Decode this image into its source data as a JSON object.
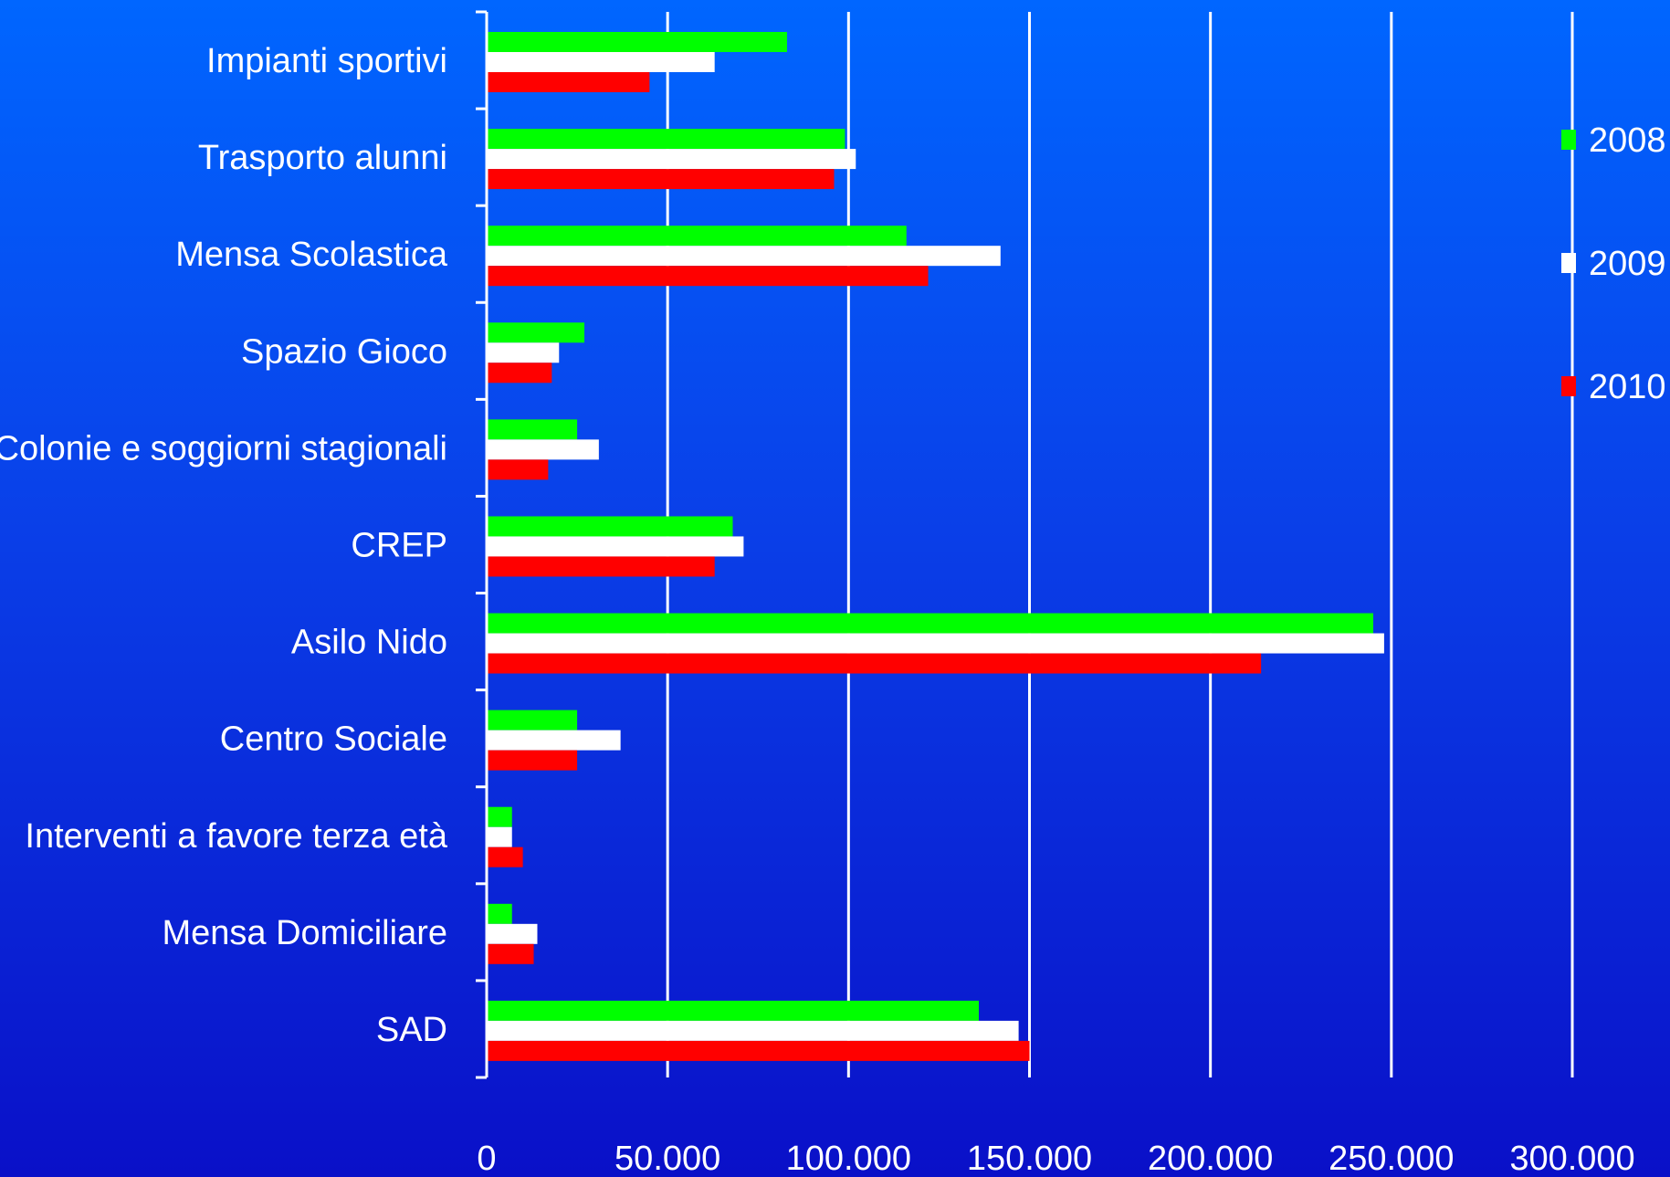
{
  "chart_data": {
    "type": "bar",
    "orientation": "horizontal",
    "title": "",
    "xlabel": "",
    "ylabel": "",
    "categories": [
      "Impianti sportivi",
      "Trasporto alunni",
      "Mensa Scolastica",
      "Spazio Gioco",
      "Colonie e soggiorni stagionali",
      "CREP",
      "Asilo Nido",
      "Centro Sociale",
      "Interventi a favore terza età",
      "Mensa Domiciliare",
      "SAD"
    ],
    "series": [
      {
        "name": "2008",
        "color": "#00ff00",
        "values": [
          83000,
          99000,
          116000,
          27000,
          25000,
          68000,
          245000,
          25000,
          7000,
          7000,
          136000
        ]
      },
      {
        "name": "2009",
        "color": "#ffffff",
        "values": [
          63000,
          102000,
          142000,
          20000,
          31000,
          71000,
          248000,
          37000,
          7000,
          14000,
          147000
        ]
      },
      {
        "name": "2010",
        "color": "#ff0000",
        "values": [
          45000,
          96000,
          122000,
          18000,
          17000,
          63000,
          214000,
          25000,
          10000,
          13000,
          150000
        ]
      }
    ],
    "xlim": [
      0,
      300000
    ],
    "x_ticks": [
      "0",
      "50.000",
      "100.000",
      "150.000",
      "200.000",
      "250.000",
      "300.000"
    ],
    "grid": "vertical",
    "legend_position": "right"
  }
}
